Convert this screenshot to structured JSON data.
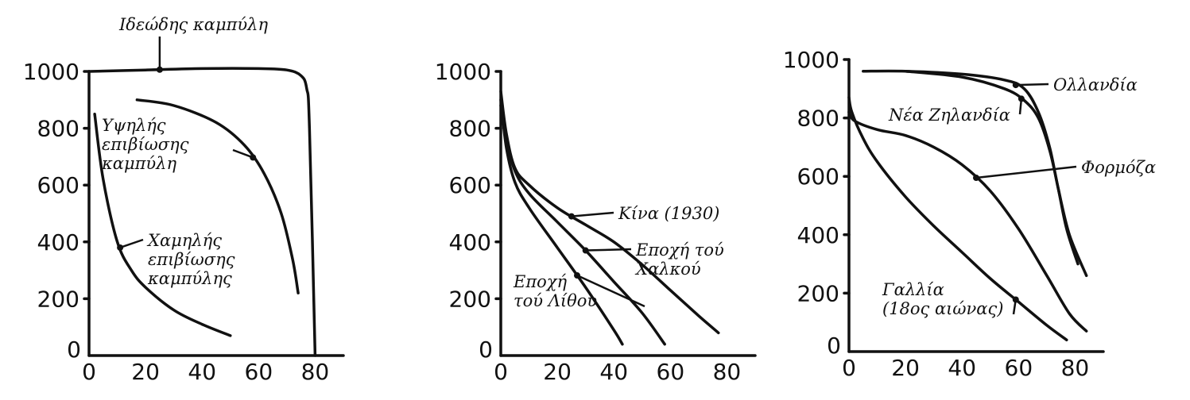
{
  "chart_data": [
    {
      "type": "line",
      "xlim": [
        0,
        90
      ],
      "ylim": [
        0,
        1000
      ],
      "x_ticks": [
        "0",
        "20",
        "40",
        "60",
        "80"
      ],
      "y_ticks": [
        "0",
        "200",
        "400",
        "600",
        "800",
        "1000"
      ],
      "series": [
        {
          "name": "Ιδεώδης καμπύλη",
          "x": [
            0,
            20,
            40,
            60,
            70,
            75,
            77,
            78,
            80
          ],
          "y": [
            1000,
            1005,
            1010,
            1010,
            1005,
            985,
            940,
            800,
            0
          ]
        },
        {
          "name": "Υψηλής επιβίωσης καμπύλη",
          "x": [
            17,
            30,
            45,
            55,
            62,
            68,
            72,
            74
          ],
          "y": [
            900,
            880,
            820,
            740,
            640,
            500,
            340,
            220
          ]
        },
        {
          "name": "Χαμηλής επιβίωσης καμπύλη",
          "x": [
            2,
            5,
            10,
            15,
            20,
            30,
            40,
            50
          ],
          "y": [
            850,
            620,
            400,
            300,
            240,
            160,
            110,
            70
          ]
        }
      ],
      "annotations": [
        {
          "text": "Ιδεώδης καμπύλη",
          "series": 0,
          "x": 25
        },
        {
          "text": "Υψηλής\nεπιβίωσης\nκαμπύλη",
          "series": 1,
          "x": 58
        },
        {
          "text": "Χαμηλής\nεπιβίωσης\nκαμπύλης",
          "series": 2,
          "x": 11
        }
      ]
    },
    {
      "type": "line",
      "xlim": [
        0,
        90
      ],
      "ylim": [
        0,
        1000
      ],
      "x_ticks": [
        "0",
        "20",
        "40",
        "60",
        "80"
      ],
      "y_ticks": [
        "0",
        "200",
        "400",
        "600",
        "800",
        "1000"
      ],
      "series": [
        {
          "name": "Κίνα (1930)",
          "x": [
            0,
            2,
            5,
            10,
            20,
            30,
            40,
            50,
            60,
            70,
            77
          ],
          "y": [
            930,
            780,
            660,
            600,
            520,
            460,
            400,
            320,
            230,
            140,
            80
          ]
        },
        {
          "name": "Εποχή του Χαλκού",
          "x": [
            0,
            2,
            5,
            10,
            20,
            30,
            40,
            50,
            58
          ],
          "y": [
            880,
            760,
            650,
            570,
            470,
            370,
            260,
            150,
            40
          ]
        },
        {
          "name": "Εποχή τού Λίθου",
          "x": [
            0,
            2,
            5,
            10,
            20,
            30,
            40,
            43
          ],
          "y": [
            900,
            730,
            610,
            520,
            380,
            240,
            90,
            40
          ]
        }
      ],
      "annotations": [
        {
          "text": "Κίνα (1930)",
          "series": 0,
          "x": 25
        },
        {
          "text": "Εποχή τού\nΧαλκού",
          "series": 1,
          "x": 30
        },
        {
          "text": "Εποχή\nτού Λίθου",
          "series": 2,
          "x": 27
        }
      ]
    },
    {
      "type": "line",
      "xlim": [
        0,
        90
      ],
      "ylim": [
        0,
        1000
      ],
      "x_ticks": [
        "0",
        "20",
        "40",
        "60",
        "80"
      ],
      "y_ticks": [
        "0",
        "200",
        "400",
        "600",
        "800",
        "1000"
      ],
      "series": [
        {
          "name": "Ολλανδία",
          "x": [
            5,
            20,
            40,
            55,
            62,
            67,
            71,
            74,
            78,
            84
          ],
          "y": [
            960,
            960,
            950,
            930,
            900,
            820,
            700,
            560,
            400,
            260
          ]
        },
        {
          "name": "Νέα Ζηλανδία",
          "x": [
            20,
            40,
            55,
            62,
            67,
            71,
            74,
            77,
            81
          ],
          "y": [
            960,
            940,
            900,
            860,
            800,
            690,
            560,
            420,
            300
          ]
        },
        {
          "name": "Φορμόζα",
          "x": [
            0,
            2,
            10,
            20,
            30,
            40,
            50,
            60,
            70,
            78,
            84
          ],
          "y": [
            820,
            790,
            760,
            740,
            700,
            640,
            550,
            420,
            260,
            130,
            70
          ]
        },
        {
          "name": "Γαλλία (18ος αιώνας)",
          "x": [
            0,
            1,
            5,
            10,
            20,
            30,
            40,
            50,
            60,
            70,
            77
          ],
          "y": [
            870,
            820,
            730,
            650,
            530,
            430,
            340,
            250,
            170,
            90,
            40
          ]
        }
      ],
      "annotations": [
        {
          "text": "Ολλανδία",
          "series": 0,
          "x": 59
        },
        {
          "text": "Νέα Ζηλανδία",
          "series": 1,
          "x": 61
        },
        {
          "text": "Φορμόζα",
          "series": 2,
          "x": 45
        },
        {
          "text": "Γαλλία\n(18ος αιώνας)",
          "series": 3,
          "x": 59
        }
      ]
    }
  ]
}
